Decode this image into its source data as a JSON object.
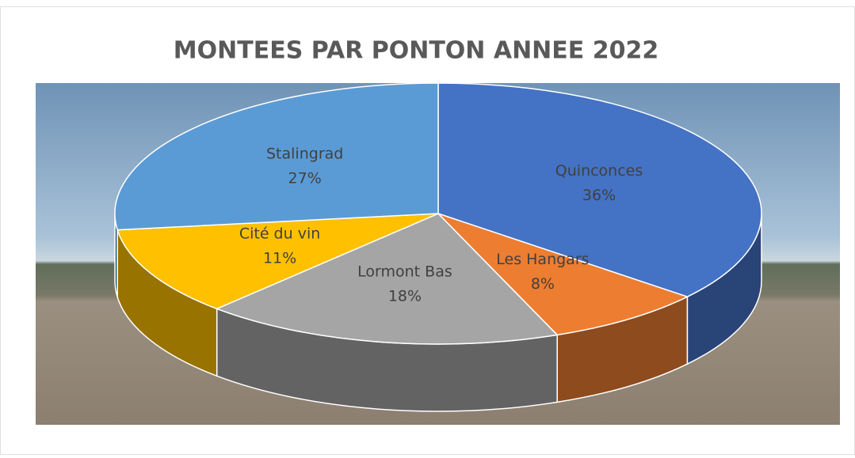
{
  "chart_data": {
    "type": "pie",
    "title": "MONTEES PAR PONTON ANNEE 2022",
    "categories": [
      "Quinconces",
      "Les Hangars",
      "Lormont Bas",
      "Cité du vin",
      "Stalingrad"
    ],
    "values": [
      36,
      8,
      18,
      11,
      27
    ],
    "value_labels": [
      "36%",
      "8%",
      "18%",
      "11%",
      "27%"
    ],
    "colors": [
      "#4472c4",
      "#ed7d31",
      "#a5a5a5",
      "#ffc000",
      "#5b9bd5"
    ]
  }
}
